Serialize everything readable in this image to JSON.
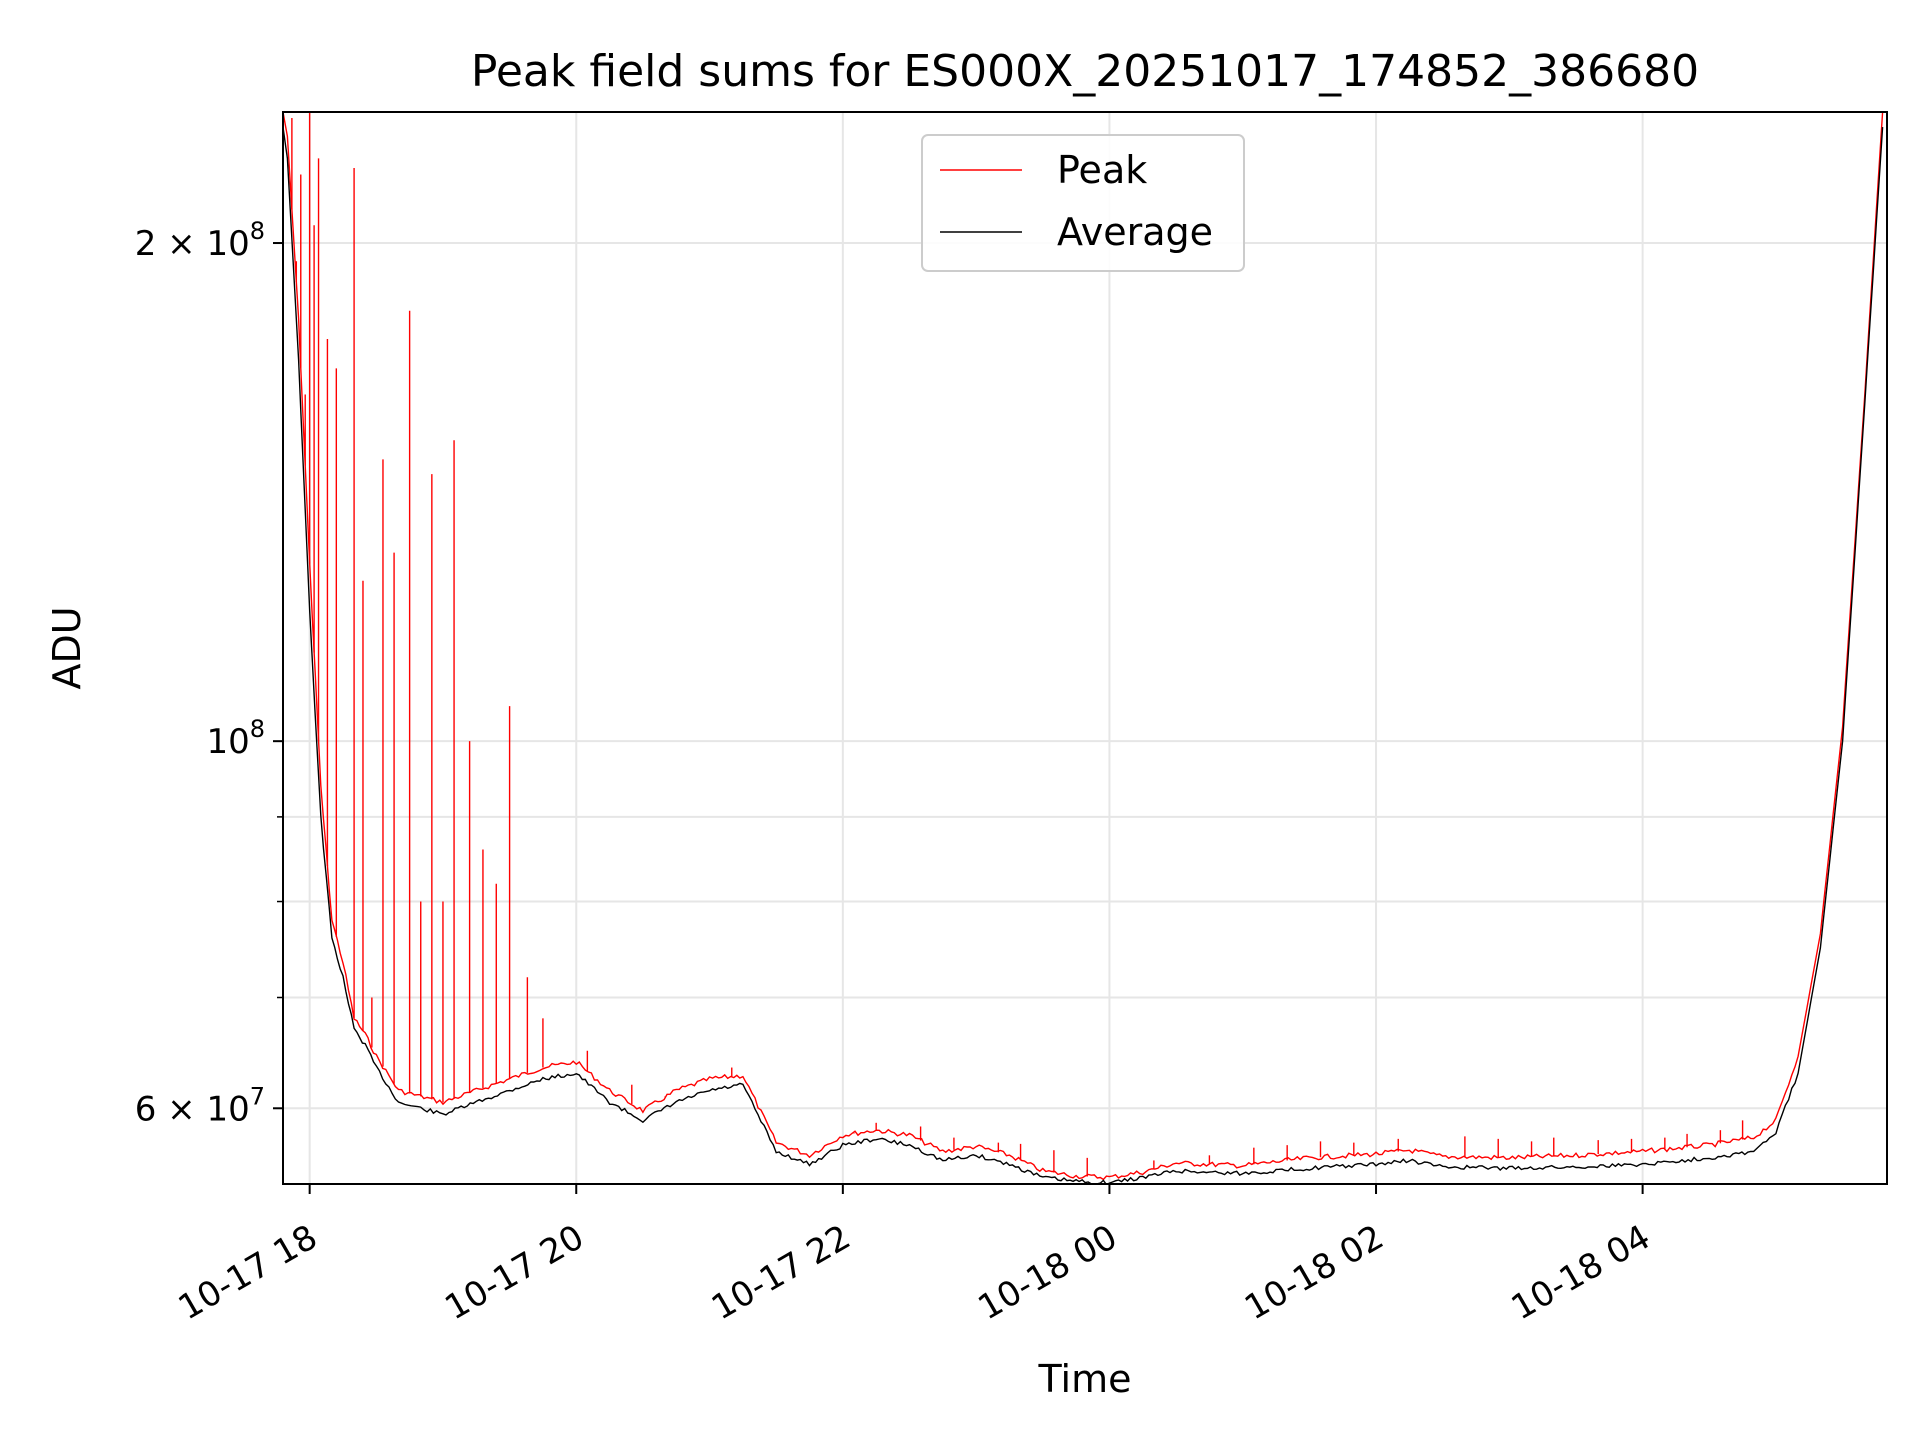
{
  "chart_data": {
    "type": "line",
    "title": "Peak field sums for ES000X_20251017_174852_386680",
    "xlabel": "Time",
    "ylabel": "ADU",
    "yscale": "log",
    "ylim": [
      54000000,
      240000000
    ],
    "xlim": [
      "2025-10-17 17:48",
      "2025-10-18 05:50"
    ],
    "grid": true,
    "legend_position": "top-center",
    "x_ticks": [
      {
        "value": "2025-10-17 18:00",
        "label": "10-17 18"
      },
      {
        "value": "2025-10-17 20:00",
        "label": "10-17 20"
      },
      {
        "value": "2025-10-17 22:00",
        "label": "10-17 22"
      },
      {
        "value": "2025-10-18 00:00",
        "label": "10-18 00"
      },
      {
        "value": "2025-10-18 02:00",
        "label": "10-18 02"
      },
      {
        "value": "2025-10-18 04:00",
        "label": "10-18 04"
      }
    ],
    "y_ticks": [
      {
        "value": 60000000,
        "label": "6 × 10",
        "exp": "7"
      },
      {
        "value": 100000000,
        "label": "10",
        "exp": "8"
      },
      {
        "value": 200000000,
        "label": "2 × 10",
        "exp": "8"
      }
    ],
    "y_minor_ticks": [
      70000000,
      80000000,
      90000000
    ],
    "series": [
      {
        "name": "Average",
        "color": "#000000",
        "x": [
          "2025-10-17 17:48",
          "2025-10-17 17:50",
          "2025-10-17 17:55",
          "2025-10-17 18:00",
          "2025-10-17 18:05",
          "2025-10-17 18:10",
          "2025-10-17 18:15",
          "2025-10-17 18:20",
          "2025-10-17 18:25",
          "2025-10-17 18:30",
          "2025-10-17 18:40",
          "2025-10-17 18:50",
          "2025-10-17 19:00",
          "2025-10-17 19:15",
          "2025-10-17 19:30",
          "2025-10-17 19:45",
          "2025-10-17 20:00",
          "2025-10-17 20:15",
          "2025-10-17 20:30",
          "2025-10-17 20:45",
          "2025-10-17 21:00",
          "2025-10-17 21:15",
          "2025-10-17 21:30",
          "2025-10-17 21:45",
          "2025-10-17 22:00",
          "2025-10-17 22:15",
          "2025-10-17 22:30",
          "2025-10-17 22:45",
          "2025-10-17 23:00",
          "2025-10-17 23:15",
          "2025-10-17 23:30",
          "2025-10-17 23:45",
          "2025-10-18 00:00",
          "2025-10-18 00:15",
          "2025-10-18 00:30",
          "2025-10-18 01:00",
          "2025-10-18 01:30",
          "2025-10-18 02:00",
          "2025-10-18 02:15",
          "2025-10-18 02:30",
          "2025-10-18 03:00",
          "2025-10-18 03:30",
          "2025-10-18 04:00",
          "2025-10-18 04:30",
          "2025-10-18 04:50",
          "2025-10-18 05:00",
          "2025-10-18 05:10",
          "2025-10-18 05:20",
          "2025-10-18 05:30",
          "2025-10-18 05:40",
          "2025-10-18 05:48"
        ],
        "y": [
          235000000,
          225000000,
          170000000,
          120000000,
          90000000,
          76000000,
          72000000,
          67000000,
          65500000,
          63500000,
          60500000,
          60000000,
          59500000,
          60500000,
          61500000,
          62500000,
          63000000,
          60500000,
          59000000,
          60500000,
          61500000,
          62000000,
          56500000,
          55500000,
          57000000,
          57500000,
          57000000,
          55800000,
          56200000,
          55500000,
          54500000,
          54200000,
          54100000,
          54500000,
          55000000,
          54800000,
          55200000,
          55500000,
          55800000,
          55300000,
          55200000,
          55300000,
          55500000,
          56000000,
          56500000,
          58000000,
          63000000,
          75000000,
          100000000,
          160000000,
          235000000
        ]
      },
      {
        "name": "Peak",
        "color": "#ff0000",
        "x": [
          "2025-10-17 17:48",
          "2025-10-17 17:50",
          "2025-10-17 17:55",
          "2025-10-17 18:00",
          "2025-10-17 18:05",
          "2025-10-17 18:10",
          "2025-10-17 18:15",
          "2025-10-17 18:20",
          "2025-10-17 18:25",
          "2025-10-17 18:30",
          "2025-10-17 18:40",
          "2025-10-17 18:50",
          "2025-10-17 19:00",
          "2025-10-17 19:15",
          "2025-10-17 19:30",
          "2025-10-17 19:45",
          "2025-10-17 20:00",
          "2025-10-17 20:15",
          "2025-10-17 20:30",
          "2025-10-17 20:45",
          "2025-10-17 21:00",
          "2025-10-17 21:15",
          "2025-10-17 21:30",
          "2025-10-17 21:45",
          "2025-10-17 22:00",
          "2025-10-17 22:15",
          "2025-10-17 22:30",
          "2025-10-17 22:45",
          "2025-10-17 23:00",
          "2025-10-17 23:15",
          "2025-10-17 23:30",
          "2025-10-17 23:45",
          "2025-10-18 00:00",
          "2025-10-18 00:15",
          "2025-10-18 00:30",
          "2025-10-18 01:00",
          "2025-10-18 01:30",
          "2025-10-18 02:00",
          "2025-10-18 02:15",
          "2025-10-18 02:30",
          "2025-10-18 03:00",
          "2025-10-18 03:30",
          "2025-10-18 04:00",
          "2025-10-18 04:30",
          "2025-10-18 04:50",
          "2025-10-18 05:00",
          "2025-10-18 05:10",
          "2025-10-18 05:20",
          "2025-10-18 05:30",
          "2025-10-18 05:40",
          "2025-10-18 05:48"
        ],
        "y": [
          240000000,
          232000000,
          180000000,
          128000000,
          94000000,
          78000000,
          73500000,
          68000000,
          66500000,
          64500000,
          61500000,
          61000000,
          60500000,
          61500000,
          62500000,
          63500000,
          64000000,
          61500000,
          59800000,
          61500000,
          62500000,
          62800000,
          57200000,
          56200000,
          57800000,
          58200000,
          57800000,
          56500000,
          56900000,
          56200000,
          55000000,
          54600000,
          54500000,
          54900000,
          55600000,
          55400000,
          56000000,
          56300000,
          56600000,
          56100000,
          56000000,
          56200000,
          56500000,
          57000000,
          57600000,
          59000000,
          64500000,
          76500000,
          102000000,
          162000000,
          240000000
        ]
      }
    ],
    "spikes": {
      "series": "Peak",
      "x": [
        "2025-10-17 17:52",
        "2025-10-17 17:54",
        "2025-10-17 17:56",
        "2025-10-17 17:58",
        "2025-10-17 18:00",
        "2025-10-17 18:02",
        "2025-10-17 18:04",
        "2025-10-17 18:08",
        "2025-10-17 18:12",
        "2025-10-17 18:20",
        "2025-10-17 18:24",
        "2025-10-17 18:28",
        "2025-10-17 18:33",
        "2025-10-17 18:38",
        "2025-10-17 18:45",
        "2025-10-17 18:50",
        "2025-10-17 18:55",
        "2025-10-17 19:00",
        "2025-10-17 19:05",
        "2025-10-17 19:12",
        "2025-10-17 19:18",
        "2025-10-17 19:24",
        "2025-10-17 19:30",
        "2025-10-17 19:38",
        "2025-10-17 19:45",
        "2025-10-17 20:05",
        "2025-10-17 20:25",
        "2025-10-17 20:40",
        "2025-10-17 21:10",
        "2025-10-17 22:05",
        "2025-10-17 22:15",
        "2025-10-17 22:35",
        "2025-10-17 22:50",
        "2025-10-17 23:10",
        "2025-10-17 23:20",
        "2025-10-17 23:35",
        "2025-10-17 23:50",
        "2025-10-18 00:20",
        "2025-10-18 00:45",
        "2025-10-18 01:05",
        "2025-10-18 01:20",
        "2025-10-18 01:35",
        "2025-10-18 01:50",
        "2025-10-18 02:10",
        "2025-10-18 02:40",
        "2025-10-18 02:55",
        "2025-10-18 03:10",
        "2025-10-18 03:20",
        "2025-10-18 03:40",
        "2025-10-18 03:55",
        "2025-10-18 04:10",
        "2025-10-18 04:20",
        "2025-10-18 04:35",
        "2025-10-18 04:45"
      ],
      "y": [
        238000000,
        195000000,
        220000000,
        162000000,
        240000000,
        205000000,
        225000000,
        175000000,
        168000000,
        222000000,
        125000000,
        70000000,
        148000000,
        130000000,
        182000000,
        80000000,
        145000000,
        80000000,
        152000000,
        100000000,
        86000000,
        82000000,
        105000000,
        72000000,
        68000000,
        65000000,
        62000000,
        61000000,
        63500000,
        58000000,
        58800000,
        58500000,
        57600000,
        57200000,
        57100000,
        56600000,
        56000000,
        55800000,
        56200000,
        56800000,
        57000000,
        57300000,
        57200000,
        57500000,
        57700000,
        57500000,
        57300000,
        57600000,
        57400000,
        57500000,
        57600000,
        57900000,
        58200000,
        59000000
      ]
    }
  },
  "legend": {
    "items": [
      {
        "label": "Peak",
        "color": "#ff0000"
      },
      {
        "label": "Average",
        "color": "#000000"
      }
    ]
  }
}
